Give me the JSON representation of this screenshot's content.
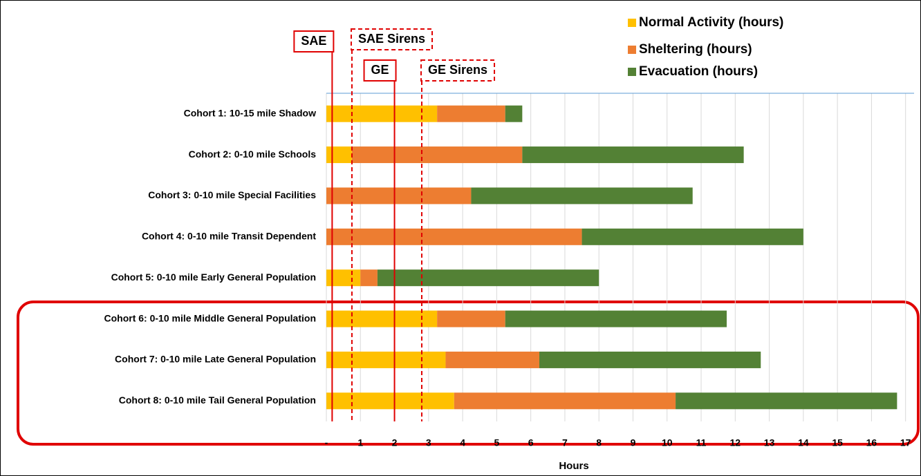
{
  "chart_data": {
    "type": "stacked_barh",
    "categories": [
      "Cohort 1: 10-15 mile Shadow",
      "Cohort 2: 0-10 mile Schools",
      "Cohort 3: 0-10 mile Special Facilities",
      "Cohort 4: 0-10 mile Transit Dependent",
      "Cohort 5: 0-10 mile Early General Population",
      "Cohort 6: 0-10 mile Middle General Population",
      "Cohort 7: 0-10 mile Late General Population",
      "Cohort 8: 0-10 mile Tail General Population"
    ],
    "series": [
      {
        "name": "Normal Activity (hours)",
        "color": "#ffc000",
        "values": [
          3.25,
          0.75,
          0,
          0,
          1,
          3.25,
          3.5,
          3.75
        ]
      },
      {
        "name": "Sheltering (hours)",
        "color": "#ed7d31",
        "values": [
          2,
          5,
          4.25,
          7.5,
          0.5,
          2,
          2.75,
          6.5
        ]
      },
      {
        "name": "Evacuation (hours)",
        "color": "#538135",
        "values": [
          0.5,
          6.5,
          6.5,
          6.5,
          6.5,
          6.5,
          6.5,
          6.5
        ]
      }
    ],
    "xlabel": "Hours",
    "xlim": [
      0,
      17.25
    ],
    "xticks": [
      {
        "value": 0,
        "label": "-"
      },
      1,
      2,
      3,
      4,
      5,
      6,
      7,
      8,
      9,
      10,
      11,
      12,
      13,
      14,
      15,
      16,
      17
    ],
    "grid": true,
    "legend": "top-right",
    "markers": [
      {
        "label": "SAE",
        "x": 0.17,
        "style": "solid"
      },
      {
        "label": "SAE Sirens",
        "x": 0.75,
        "style": "dashed"
      },
      {
        "label": "GE",
        "x": 2,
        "style": "solid"
      },
      {
        "label": "GE Sirens",
        "x": 2.8,
        "style": "dashed"
      }
    ]
  }
}
